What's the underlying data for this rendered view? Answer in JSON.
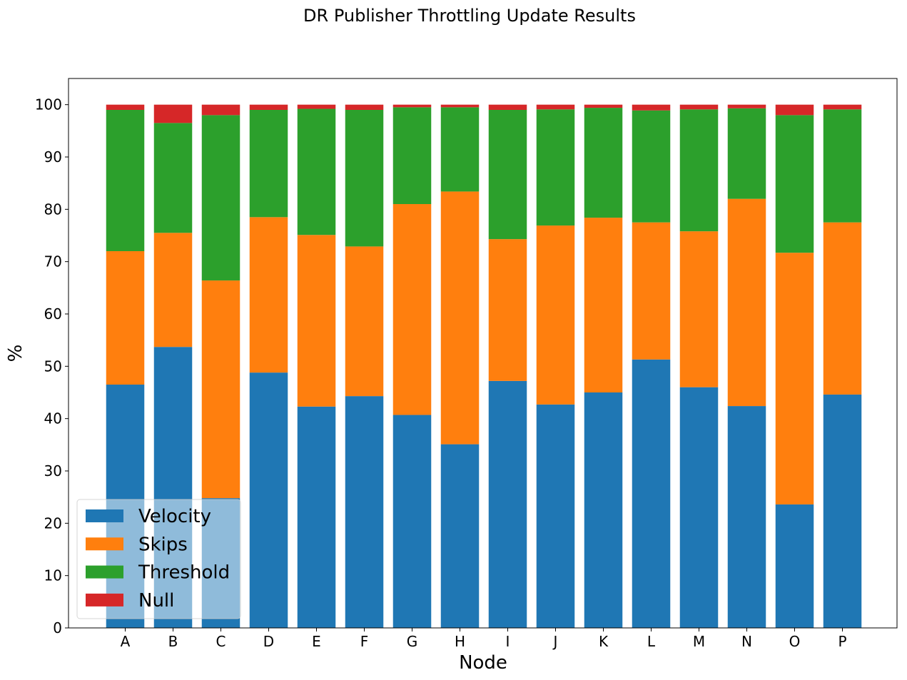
{
  "chart_data": {
    "type": "bar",
    "stacked": true,
    "title": "DR Publisher Throttling Update Results",
    "xlabel": "Node",
    "ylabel": "%",
    "ylim": [
      0,
      105
    ],
    "yticks": [
      0,
      10,
      20,
      30,
      40,
      50,
      60,
      70,
      80,
      90,
      100
    ],
    "grid": false,
    "legend_position": "lower-left",
    "categories": [
      "A",
      "B",
      "C",
      "D",
      "E",
      "F",
      "G",
      "H",
      "I",
      "J",
      "K",
      "L",
      "M",
      "N",
      "O",
      "P"
    ],
    "series": [
      {
        "name": "Velocity",
        "color": "#1f77b4",
        "values": [
          46.5,
          53.7,
          24.8,
          48.8,
          42.3,
          44.3,
          40.7,
          35.1,
          47.2,
          42.7,
          45.0,
          51.3,
          46.0,
          42.4,
          23.6,
          44.6
        ]
      },
      {
        "name": "Skips",
        "color": "#ff7f0e",
        "values": [
          25.5,
          21.8,
          41.6,
          29.7,
          32.8,
          28.6,
          40.3,
          48.3,
          27.1,
          34.2,
          33.4,
          26.2,
          29.8,
          39.6,
          48.1,
          32.9
        ]
      },
      {
        "name": "Threshold",
        "color": "#2ca02c",
        "values": [
          27.0,
          21.0,
          31.6,
          20.5,
          24.1,
          26.1,
          18.5,
          16.1,
          24.7,
          22.2,
          21.0,
          21.4,
          23.3,
          17.3,
          26.3,
          21.6
        ]
      },
      {
        "name": "Null",
        "color": "#d62728",
        "values": [
          1.0,
          3.5,
          2.0,
          1.0,
          0.8,
          1.0,
          0.5,
          0.5,
          1.0,
          0.9,
          0.6,
          1.1,
          0.9,
          0.7,
          2.0,
          0.9
        ]
      }
    ]
  }
}
